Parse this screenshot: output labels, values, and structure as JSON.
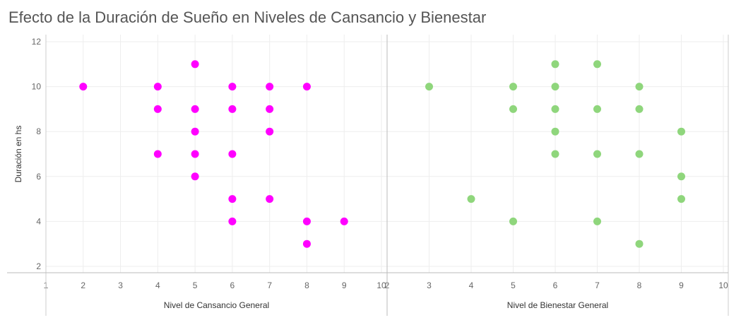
{
  "title": "Efecto de la Duración de Sueño en Niveles de Cansancio y Bienestar",
  "chart_data": {
    "type": "scatter",
    "ylabel": "Duración en hs",
    "ylim": [
      2,
      12
    ],
    "yticks": [
      2,
      4,
      6,
      8,
      10,
      12
    ],
    "grid": true,
    "panels": [
      {
        "name": "cansancio",
        "xlabel": "Nivel de Cansancio General",
        "xlim": [
          1,
          10
        ],
        "xticks": [
          1,
          2,
          3,
          4,
          5,
          6,
          7,
          8,
          9,
          10
        ],
        "color": "#ff00ff",
        "points": [
          {
            "x": 2,
            "y": 10
          },
          {
            "x": 4,
            "y": 10
          },
          {
            "x": 4,
            "y": 9
          },
          {
            "x": 4,
            "y": 7
          },
          {
            "x": 5,
            "y": 11
          },
          {
            "x": 5,
            "y": 9
          },
          {
            "x": 5,
            "y": 8
          },
          {
            "x": 5,
            "y": 7
          },
          {
            "x": 5,
            "y": 6
          },
          {
            "x": 6,
            "y": 10
          },
          {
            "x": 6,
            "y": 9
          },
          {
            "x": 6,
            "y": 7
          },
          {
            "x": 6,
            "y": 5
          },
          {
            "x": 6,
            "y": 4
          },
          {
            "x": 7,
            "y": 10
          },
          {
            "x": 7,
            "y": 9
          },
          {
            "x": 7,
            "y": 8
          },
          {
            "x": 7,
            "y": 5
          },
          {
            "x": 8,
            "y": 10
          },
          {
            "x": 8,
            "y": 4
          },
          {
            "x": 8,
            "y": 3
          },
          {
            "x": 9,
            "y": 4
          }
        ]
      },
      {
        "name": "bienestar",
        "xlabel": "Nivel de Bienestar General",
        "xlim": [
          2,
          10
        ],
        "xticks": [
          2,
          3,
          4,
          5,
          6,
          7,
          8,
          9,
          10
        ],
        "color": "#8fd67c",
        "points": [
          {
            "x": 3,
            "y": 10
          },
          {
            "x": 4,
            "y": 5
          },
          {
            "x": 5,
            "y": 10
          },
          {
            "x": 5,
            "y": 9
          },
          {
            "x": 5,
            "y": 4
          },
          {
            "x": 6,
            "y": 11
          },
          {
            "x": 6,
            "y": 10
          },
          {
            "x": 6,
            "y": 9
          },
          {
            "x": 6,
            "y": 8
          },
          {
            "x": 6,
            "y": 7
          },
          {
            "x": 7,
            "y": 11
          },
          {
            "x": 7,
            "y": 9
          },
          {
            "x": 7,
            "y": 7
          },
          {
            "x": 7,
            "y": 4
          },
          {
            "x": 8,
            "y": 10
          },
          {
            "x": 8,
            "y": 9
          },
          {
            "x": 8,
            "y": 7
          },
          {
            "x": 8,
            "y": 3
          },
          {
            "x": 9,
            "y": 8
          },
          {
            "x": 9,
            "y": 6
          },
          {
            "x": 9,
            "y": 5
          }
        ]
      }
    ]
  }
}
